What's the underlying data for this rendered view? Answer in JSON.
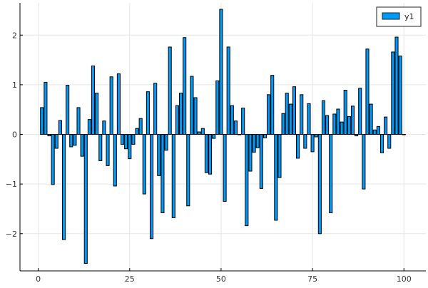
{
  "chart_data": {
    "type": "bar",
    "title": "",
    "xlabel": "",
    "ylabel": "",
    "xlim": [
      -5,
      106
    ],
    "ylim": [
      -2.75,
      2.65
    ],
    "xticks": [
      0,
      25,
      50,
      75,
      100
    ],
    "yticks": [
      -2,
      -1,
      0,
      1,
      2
    ],
    "xtick_labels": [
      "0",
      "25",
      "50",
      "75",
      "100"
    ],
    "ytick_labels": [
      "−2",
      "−1",
      "0",
      "1",
      "2"
    ],
    "grid": true,
    "legend_position": "top-right",
    "series": [
      {
        "name": "y1",
        "color": "#009AF9",
        "x": [
          1,
          2,
          3,
          4,
          5,
          6,
          7,
          8,
          9,
          10,
          11,
          12,
          13,
          14,
          15,
          16,
          17,
          18,
          19,
          20,
          21,
          22,
          23,
          24,
          25,
          26,
          27,
          28,
          29,
          30,
          31,
          32,
          33,
          34,
          35,
          36,
          37,
          38,
          39,
          40,
          41,
          42,
          43,
          44,
          45,
          46,
          47,
          48,
          49,
          50,
          51,
          52,
          53,
          54,
          55,
          56,
          57,
          58,
          59,
          60,
          61,
          62,
          63,
          64,
          65,
          66,
          67,
          68,
          69,
          70,
          71,
          72,
          73,
          74,
          75,
          76,
          77,
          78,
          79,
          80,
          81,
          82,
          83,
          84,
          85,
          86,
          87,
          88,
          89,
          90,
          91,
          92,
          93,
          94,
          95,
          96,
          97,
          98,
          99,
          100
        ],
        "values": [
          0.54,
          1.05,
          -0.03,
          -1.01,
          -0.28,
          0.28,
          -2.12,
          0.99,
          -0.25,
          -0.22,
          0.54,
          -0.44,
          -2.6,
          0.3,
          1.38,
          0.83,
          -0.53,
          0.27,
          -0.63,
          1.16,
          -1.04,
          1.22,
          -0.2,
          -0.29,
          -0.49,
          -0.2,
          0.12,
          0.32,
          -1.2,
          0.86,
          -2.1,
          1.03,
          -0.83,
          -1.58,
          -0.32,
          1.76,
          -1.68,
          0.58,
          0.83,
          1.95,
          -1.44,
          1.17,
          0.74,
          0.05,
          0.12,
          -0.77,
          -0.8,
          -0.08,
          1.08,
          2.52,
          -1.35,
          1.76,
          0.58,
          0.27,
          0.0,
          0.53,
          -1.84,
          -0.74,
          -0.36,
          -0.27,
          -1.09,
          -0.07,
          0.8,
          1.19,
          -1.73,
          -0.87,
          0.42,
          0.83,
          0.61,
          0.96,
          -0.48,
          0.8,
          -0.28,
          0.62,
          -0.35,
          -0.05,
          -2.0,
          0.68,
          0.38,
          -1.58,
          0.41,
          0.51,
          0.25,
          0.89,
          0.36,
          0.57,
          -0.03,
          0.93,
          -1.1,
          1.72,
          0.61,
          0.09,
          0.16,
          -0.37,
          0.35,
          -0.28,
          1.66,
          1.96,
          1.58,
          0.0
        ]
      }
    ]
  }
}
